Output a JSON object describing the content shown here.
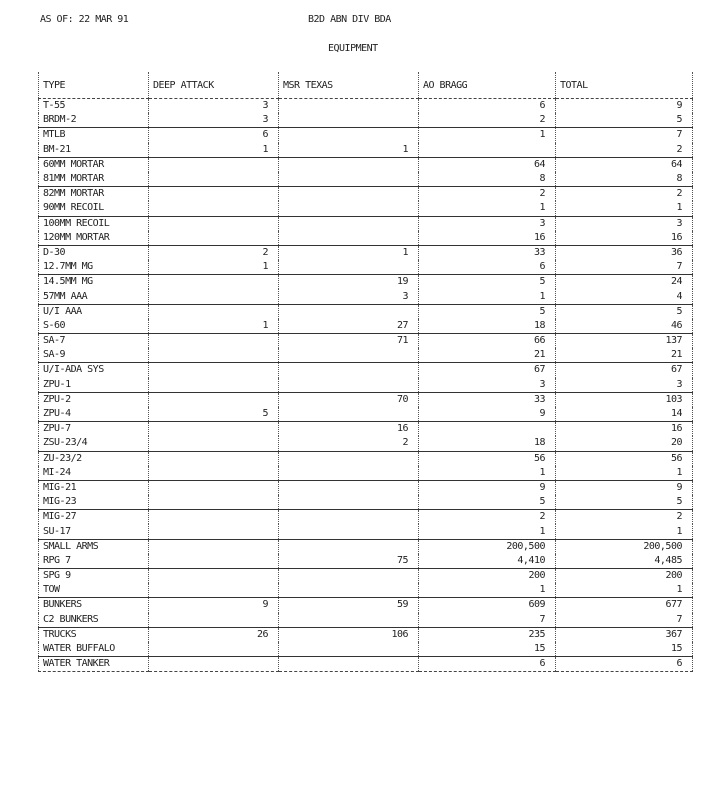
{
  "header": {
    "as_of": "AS OF:  22 MAR 91",
    "title": "B2D ABN DIV BDA",
    "subtitle": "EQUIPMENT"
  },
  "columns": [
    "TYPE",
    "DEEP ATTACK",
    "MSR TEXAS",
    "AO BRAGG",
    "TOTAL"
  ],
  "rows": [
    [
      "T-55",
      "3",
      "",
      "6",
      "9"
    ],
    [
      "BRDM-2",
      "3",
      "",
      "2",
      "5"
    ],
    [
      "MTLB",
      "6",
      "",
      "1",
      "7"
    ],
    [
      "BM-21",
      "1",
      "1",
      "",
      "2"
    ],
    [
      "60MM MORTAR",
      "",
      "",
      "64",
      "64"
    ],
    [
      "81MM MORTAR",
      "",
      "",
      "8",
      "8"
    ],
    [
      "82MM MORTAR",
      "",
      "",
      "2",
      "2"
    ],
    [
      "90MM RECOIL",
      "",
      "",
      "1",
      "1"
    ],
    [
      "100MM RECOIL",
      "",
      "",
      "3",
      "3"
    ],
    [
      "120MM MORTAR",
      "",
      "",
      "16",
      "16"
    ],
    [
      "D-30",
      "2",
      "1",
      "33",
      "36"
    ],
    [
      "12.7MM MG",
      "1",
      "",
      "6",
      "7"
    ],
    [
      "14.5MM MG",
      "",
      "19",
      "5",
      "24"
    ],
    [
      "57MM AAA",
      "",
      "3",
      "1",
      "4"
    ],
    [
      "U/I AAA",
      "",
      "",
      "5",
      "5"
    ],
    [
      "S-60",
      "1",
      "27",
      "18",
      "46"
    ],
    [
      "SA-7",
      "",
      "71",
      "66",
      "137"
    ],
    [
      "SA-9",
      "",
      "",
      "21",
      "21"
    ],
    [
      "U/I-ADA SYS",
      "",
      "",
      "67",
      "67"
    ],
    [
      "ZPU-1",
      "",
      "",
      "3",
      "3"
    ],
    [
      "ZPU-2",
      "",
      "70",
      "33",
      "103"
    ],
    [
      "ZPU-4",
      "5",
      "",
      "9",
      "14"
    ],
    [
      "ZPU-7",
      "",
      "16",
      "",
      "16"
    ],
    [
      "ZSU-23/4",
      "",
      "2",
      "18",
      "20"
    ],
    [
      "ZU-23/2",
      "",
      "",
      "56",
      "56"
    ],
    [
      "MI-24",
      "",
      "",
      "1",
      "1"
    ],
    [
      "MIG-21",
      "",
      "",
      "9",
      "9"
    ],
    [
      "MIG-23",
      "",
      "",
      "5",
      "5"
    ],
    [
      "MIG-27",
      "",
      "",
      "2",
      "2"
    ],
    [
      "SU-17",
      "",
      "",
      "1",
      "1"
    ],
    [
      "SMALL ARMS",
      "",
      "",
      "200,500",
      "200,500"
    ],
    [
      "RPG 7",
      "",
      "75",
      "4,410",
      "4,485"
    ],
    [
      "SPG 9",
      "",
      "",
      "200",
      "200"
    ],
    [
      "TOW",
      "",
      "",
      "1",
      "1"
    ],
    [
      "BUNKERS",
      "9",
      "59",
      "609",
      "677"
    ],
    [
      "C2 BUNKERS",
      "",
      "",
      "7",
      "7"
    ],
    [
      "TRUCKS",
      "26",
      "106",
      "235",
      "367"
    ],
    [
      "WATER BUFFALO",
      "",
      "",
      "15",
      "15"
    ],
    [
      "WATER TANKER",
      "",
      "",
      "6",
      "6"
    ]
  ]
}
